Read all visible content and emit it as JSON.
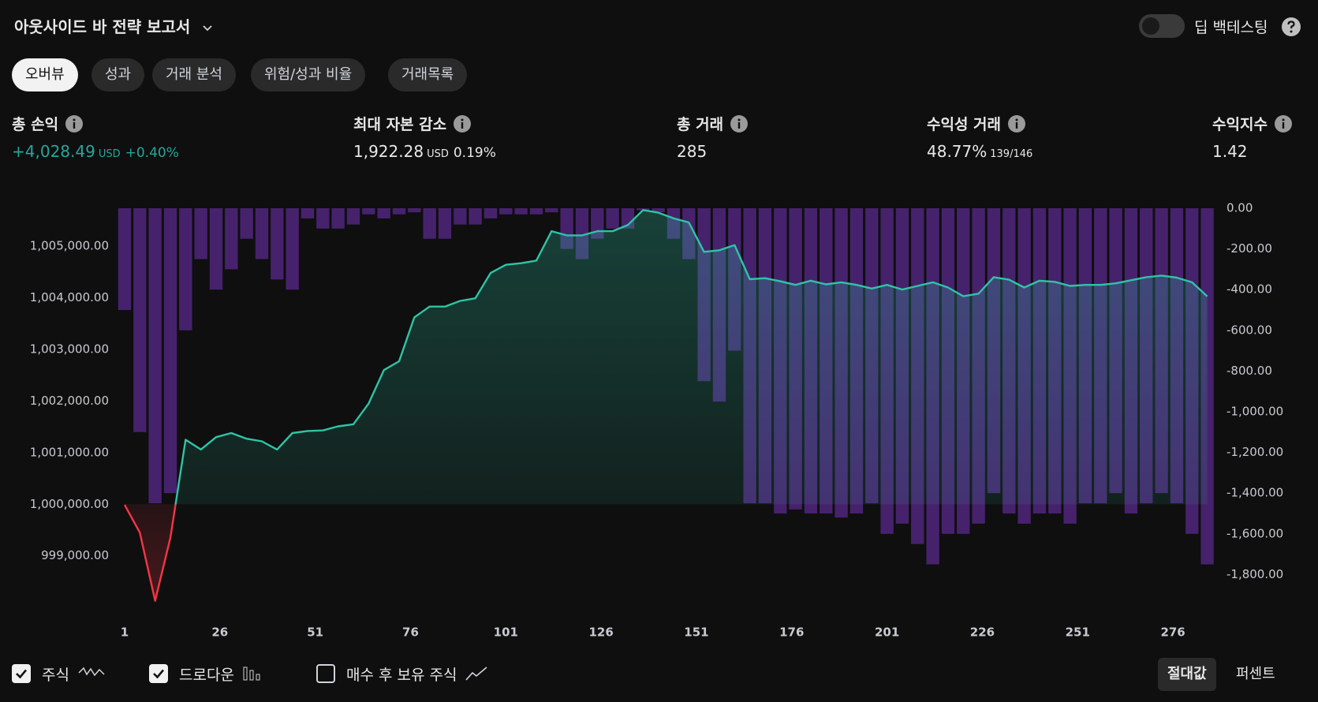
{
  "header": {
    "title": "아웃사이드 바 전략 보고서",
    "deep_backtest": "딥 백테스팅"
  },
  "tabs": {
    "items": [
      "오버뷰",
      "성과",
      "거래 분석",
      "위험/성과 비율",
      "거래목록"
    ],
    "active": 0
  },
  "metrics": [
    {
      "label": "총 손익",
      "value": "+4,028.49",
      "unit": "USD",
      "extra": "+0.40%",
      "positive": true
    },
    {
      "label": "최대 자본 감소",
      "value": "1,922.28",
      "unit": "USD",
      "extra": "0.19%"
    },
    {
      "label": "총 거래",
      "value": "285"
    },
    {
      "label": "수익성 거래",
      "value": "48.77%",
      "extra": "139/146"
    },
    {
      "label": "수익지수",
      "value": "1.42"
    }
  ],
  "chart_data": {
    "type": "combo",
    "x": [
      1,
      5,
      9,
      13,
      17,
      21,
      25,
      29,
      33,
      37,
      41,
      45,
      49,
      53,
      57,
      61,
      65,
      69,
      73,
      77,
      81,
      85,
      89,
      93,
      97,
      101,
      105,
      109,
      113,
      117,
      121,
      125,
      129,
      133,
      137,
      141,
      145,
      149,
      153,
      157,
      161,
      165,
      169,
      173,
      177,
      181,
      185,
      189,
      193,
      197,
      201,
      205,
      209,
      213,
      217,
      221,
      225,
      229,
      233,
      237,
      241,
      245,
      249,
      253,
      257,
      261,
      265,
      269,
      273,
      277,
      281,
      285
    ],
    "xlim": [
      1,
      285
    ],
    "xticks": [
      1,
      26,
      51,
      76,
      101,
      126,
      151,
      176,
      201,
      226,
      251,
      276
    ],
    "ylim": [
      997850,
      1005735
    ],
    "yticks": [
      {
        "value": 999000,
        "label": "999,000.00"
      },
      {
        "value": 1000000,
        "label": "1,000,000.00"
      },
      {
        "value": 1001000,
        "label": "1,001,000.00"
      },
      {
        "value": 1002000,
        "label": "1,002,000.00"
      },
      {
        "value": 1003000,
        "label": "1,003,000.00"
      },
      {
        "value": 1004000,
        "label": "1,004,000.00"
      },
      {
        "value": 1005000,
        "label": "1,005,000.00"
      }
    ],
    "y2lim": [
      -2000,
      0
    ],
    "y2ticks": [
      {
        "value": 0,
        "label": "0.00"
      },
      {
        "value": -200,
        "label": "-200.00"
      },
      {
        "value": -400,
        "label": "-400.00"
      },
      {
        "value": -600,
        "label": "-600.00"
      },
      {
        "value": -800,
        "label": "-800.00"
      },
      {
        "value": -1000,
        "label": "-1,000.00"
      },
      {
        "value": -1200,
        "label": "-1,200.00"
      },
      {
        "value": -1400,
        "label": "-1,400.00"
      },
      {
        "value": -1600,
        "label": "-1,600.00"
      },
      {
        "value": -1800,
        "label": "-1,800.00"
      }
    ],
    "baseline": 1000000,
    "series": [
      {
        "name": "주식",
        "type": "line",
        "visible": true,
        "color": "#2ec4a6",
        "negative_color": "#f23645",
        "values": [
          999990,
          999450,
          998130,
          999350,
          1001250,
          1001060,
          1001300,
          1001380,
          1001270,
          1001220,
          1001060,
          1001380,
          1001420,
          1001430,
          1001510,
          1001550,
          1001950,
          1002600,
          1002770,
          1003620,
          1003830,
          1003830,
          1003940,
          1003990,
          1004480,
          1004640,
          1004670,
          1004720,
          1005290,
          1005210,
          1005210,
          1005290,
          1005290,
          1005410,
          1005700,
          1005650,
          1005540,
          1005460,
          1004890,
          1004920,
          1005020,
          1004360,
          1004380,
          1004320,
          1004250,
          1004330,
          1004260,
          1004300,
          1004250,
          1004180,
          1004250,
          1004160,
          1004230,
          1004300,
          1004200,
          1004030,
          1004080,
          1004400,
          1004350,
          1004200,
          1004330,
          1004310,
          1004230,
          1004250,
          1004250,
          1004280,
          1004340,
          1004400,
          1004430,
          1004390,
          1004300,
          1004028
        ]
      },
      {
        "name": "드로다운",
        "type": "bar",
        "axis": "y2",
        "visible": true,
        "color": "#5a2a8c",
        "values": [
          -500,
          -1100,
          -1450,
          -1400,
          -600,
          -250,
          -400,
          -300,
          -150,
          -250,
          -350,
          -400,
          -50,
          -100,
          -100,
          -80,
          -30,
          -50,
          -30,
          -20,
          -150,
          -150,
          -80,
          -80,
          -50,
          -30,
          -30,
          -30,
          -20,
          -200,
          -250,
          -150,
          -100,
          -100,
          -10,
          -20,
          -150,
          -250,
          -850,
          -950,
          -700,
          -1450,
          -1450,
          -1500,
          -1480,
          -1500,
          -1500,
          -1520,
          -1500,
          -1450,
          -1600,
          -1550,
          -1650,
          -1750,
          -1600,
          -1600,
          -1550,
          -1400,
          -1500,
          -1550,
          -1500,
          -1500,
          -1550,
          -1450,
          -1450,
          -1400,
          -1500,
          -1450,
          -1400,
          -1450,
          -1600,
          -1750
        ]
      }
    ],
    "buy_hold": {
      "name": "매수 후 보유 주식",
      "visible": false
    }
  },
  "modes": {
    "items": [
      "절대값",
      "퍼센트"
    ],
    "active": 0
  }
}
